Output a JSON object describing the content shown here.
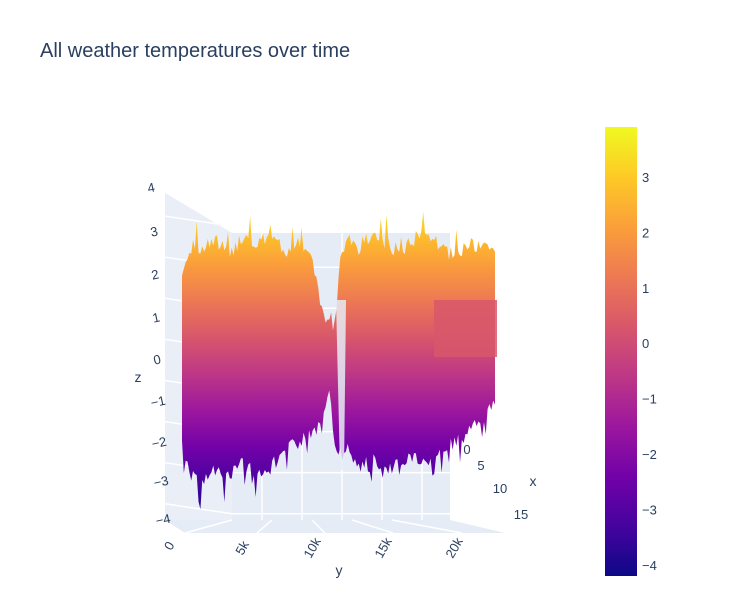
{
  "chart_data": {
    "type": "surface",
    "title": "All weather temperatures over time",
    "x": {
      "label": "x",
      "ticks": [
        "0",
        "5",
        "10",
        "15"
      ],
      "range": [
        0,
        17
      ]
    },
    "y": {
      "label": "y",
      "ticks": [
        "0",
        "5k",
        "10k",
        "15k",
        "20k"
      ],
      "range": [
        0,
        23000
      ]
    },
    "z": {
      "label": "z",
      "ticks": [
        "4",
        "3",
        "2",
        "1",
        "0",
        "−1",
        "−2",
        "−3",
        "−4"
      ],
      "range": [
        -4.2,
        4
      ]
    },
    "colorbar": {
      "ticks": [
        "3",
        "2",
        "1",
        "0",
        "−1",
        "−2",
        "−3",
        "−4"
      ],
      "range": [
        -4.2,
        3.9
      ],
      "colorscale": [
        "#0d0887",
        "#46039f",
        "#7201a8",
        "#9c179e",
        "#bd3786",
        "#d8576b",
        "#ed7953",
        "#fb9f3a",
        "#fdca26",
        "#f0f921"
      ]
    },
    "profile": {
      "y": [
        0,
        500,
        1500,
        2500,
        3500,
        4500,
        5500,
        6500,
        7500,
        8500,
        9500,
        10300,
        10800,
        11200,
        11700,
        12200,
        13000,
        14000,
        15000,
        16000,
        17000,
        18000,
        19000,
        20000,
        21000,
        22000,
        22800
      ],
      "z_max": [
        1.9,
        2.6,
        2.5,
        2.8,
        2.4,
        2.9,
        2.6,
        3.0,
        2.5,
        2.7,
        2.4,
        1.0,
        0.8,
        0.7,
        2.5,
        2.8,
        2.5,
        2.9,
        2.7,
        2.5,
        2.8,
        3.0,
        2.6,
        2.4,
        2.7,
        2.6,
        2.5
      ],
      "z_min": [
        -2.3,
        -3.1,
        -3.4,
        -3.0,
        -3.2,
        -2.9,
        -3.1,
        -3.0,
        -2.6,
        -2.4,
        -2.1,
        -2.0,
        -1.2,
        -2.3,
        -2.7,
        -2.4,
        -3.0,
        -2.8,
        -3.1,
        -2.9,
        -2.7,
        -3.0,
        -2.6,
        -2.4,
        -2.2,
        -1.8,
        -1.5
      ]
    }
  }
}
